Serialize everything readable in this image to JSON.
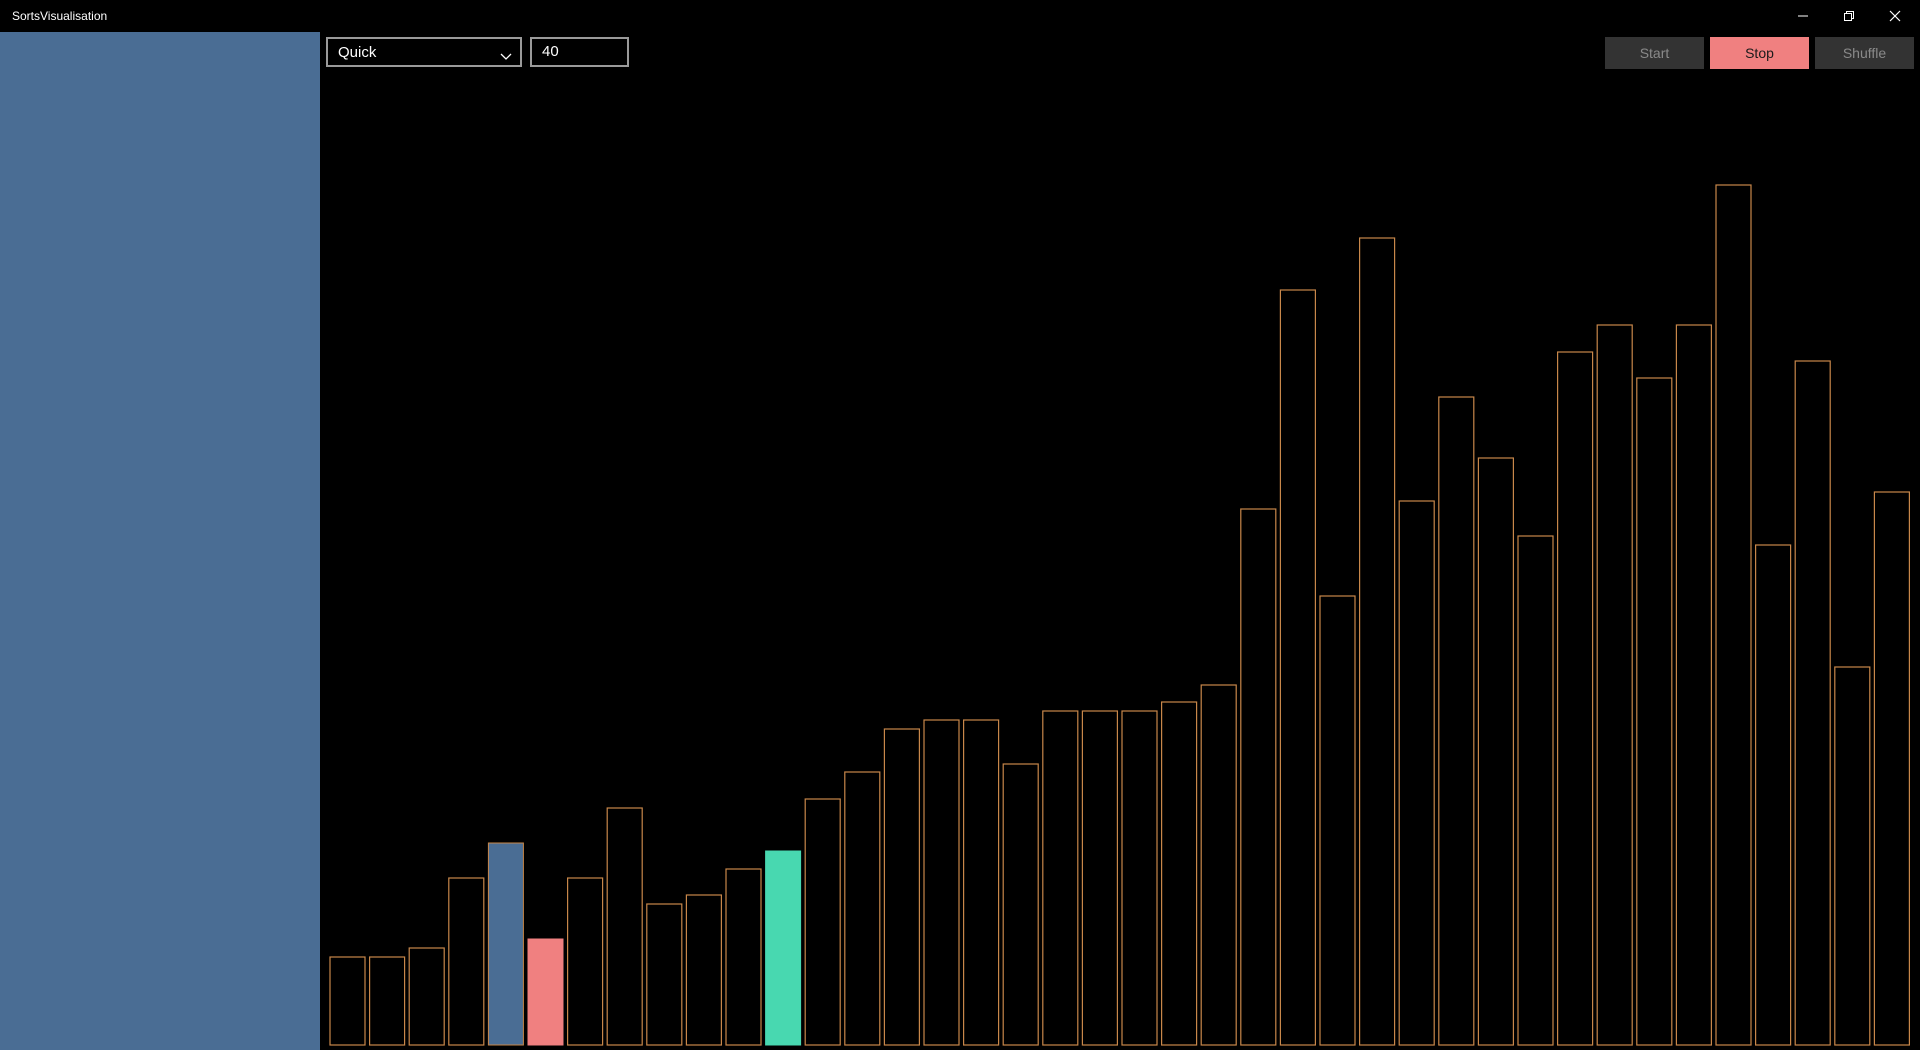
{
  "window": {
    "title": "SortsVisualisation",
    "minimize_icon": "minimize-icon",
    "restore_icon": "restore-icon",
    "close_icon": "close-icon"
  },
  "toolbar": {
    "algorithm": "Quick",
    "count_value": "40",
    "start_label": "Start",
    "stop_label": "Stop",
    "shuffle_label": "Shuffle"
  },
  "colors": {
    "sidebar": "#4a6d94",
    "bar_outline": "#c8874a",
    "pivot": "#4a6d94",
    "compare": "#f08080",
    "current": "#48d8b0",
    "stop_button": "#f08080"
  },
  "chart_data": {
    "type": "bar",
    "values": [
      88,
      88,
      97,
      167,
      202,
      106,
      167,
      237,
      141,
      150,
      176,
      194,
      246,
      273,
      316,
      325,
      325,
      281,
      334,
      334,
      334,
      343,
      360,
      536,
      755,
      449,
      807,
      544,
      648,
      587,
      509,
      693,
      720,
      667,
      720,
      860,
      500,
      684,
      378,
      553
    ],
    "highlights": [
      {
        "index": 4,
        "role": "pivot"
      },
      {
        "index": 5,
        "role": "compare"
      },
      {
        "index": 11,
        "role": "current"
      }
    ]
  }
}
